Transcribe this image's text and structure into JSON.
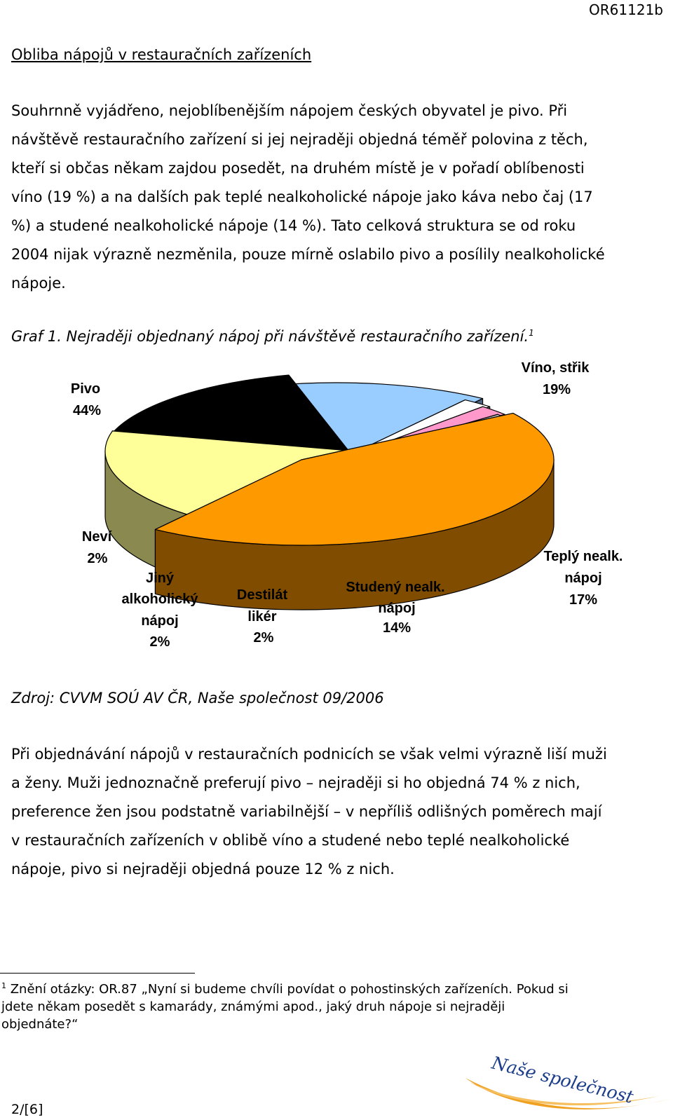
{
  "header": {
    "doc_code": "OR61121b"
  },
  "heading": "Obliba nápojů v restauračních zařízeních",
  "para1": {
    "lines": [
      "Souhrnně vyjádřeno, nejoblíbenějším nápojem českých obyvatel je pivo. Při",
      "návštěvě restauračního zařízení si jej nejraději objedná téměř polovina z těch,",
      "kteří si občas někam zajdou posedět, na druhém místě je v pořadí oblíbenosti",
      "víno (19 %) a na dalších pak teplé nealkoholické nápoje jako káva nebo čaj (17",
      "%) a studené nealkoholické nápoje (14 %). Tato celková struktura se od roku",
      "2004 nijak výrazně nezměnila, pouze mírně oslabilo pivo a posílily nealkoholické",
      "nápoje."
    ]
  },
  "caption": {
    "text": "Graf 1. Nejraději objednaný nápoj při návštěvě restauračního zařízení.",
    "footnote_mark": "1"
  },
  "chart_data": {
    "type": "pie",
    "slices": [
      {
        "label": "Pivo",
        "value": 44,
        "value_label": "44%",
        "color": "#ff9900",
        "side_color": "#7f4c00"
      },
      {
        "label": "Víno, střik",
        "value": 19,
        "value_label": "19%",
        "color": "#ffff99",
        "side_color": "#8a8a50"
      },
      {
        "label": "Teplý nealk. nápoj",
        "value": 17,
        "value_label": "17%",
        "color": "#000000",
        "side_color": "#000000"
      },
      {
        "label": "Studený nealk. nápoj",
        "value": 14,
        "value_label": "14%",
        "color": "#99ccff",
        "side_color": "#4d6580"
      },
      {
        "label": "Destilát likér",
        "value": 2,
        "value_label": "2%",
        "color": "#ffffff",
        "side_color": "#969696"
      },
      {
        "label": "Jiný alkoholický nápoj",
        "value": 2,
        "value_label": "2%",
        "color": "#ff99cc",
        "side_color": "#804d66"
      },
      {
        "label": "Neví",
        "value": 2,
        "value_label": "2%",
        "color": "#c0c0c0",
        "side_color": "#606060"
      }
    ],
    "legend": "none",
    "exploded": true,
    "three_d": true
  },
  "source": "Zdroj: CVVM SOÚ AV ČR, Naše společnost 09/2006",
  "para2": {
    "lines": [
      "Při objednávání nápojů v restauračních podnicích se však velmi výrazně liší muži",
      "a ženy. Muži jednoznačně preferují pivo – nejraději si ho objedná 74 % z nich,",
      "preference žen jsou podstatně variabilnější – v nepříliš odlišných poměrech mají",
      "v restauračních zařízeních v oblibě víno a studené nebo teplé nealkoholické",
      "nápoje, pivo si nejraději objedná pouze 12 % z nich."
    ]
  },
  "footnote": {
    "mark": "1",
    "lines": [
      " Znění otázky: OR.87 „Nyní si budeme chvíli povídat o pohostinských zařízeních. Pokud si",
      "jdete někam posedět s kamarády, známými apod., jaký druh nápoje si nejraději",
      "objednáte?“"
    ]
  },
  "logo": {
    "text": "Naše společnost",
    "color": "#f0a020"
  },
  "page": {
    "number": "2/[6]"
  }
}
